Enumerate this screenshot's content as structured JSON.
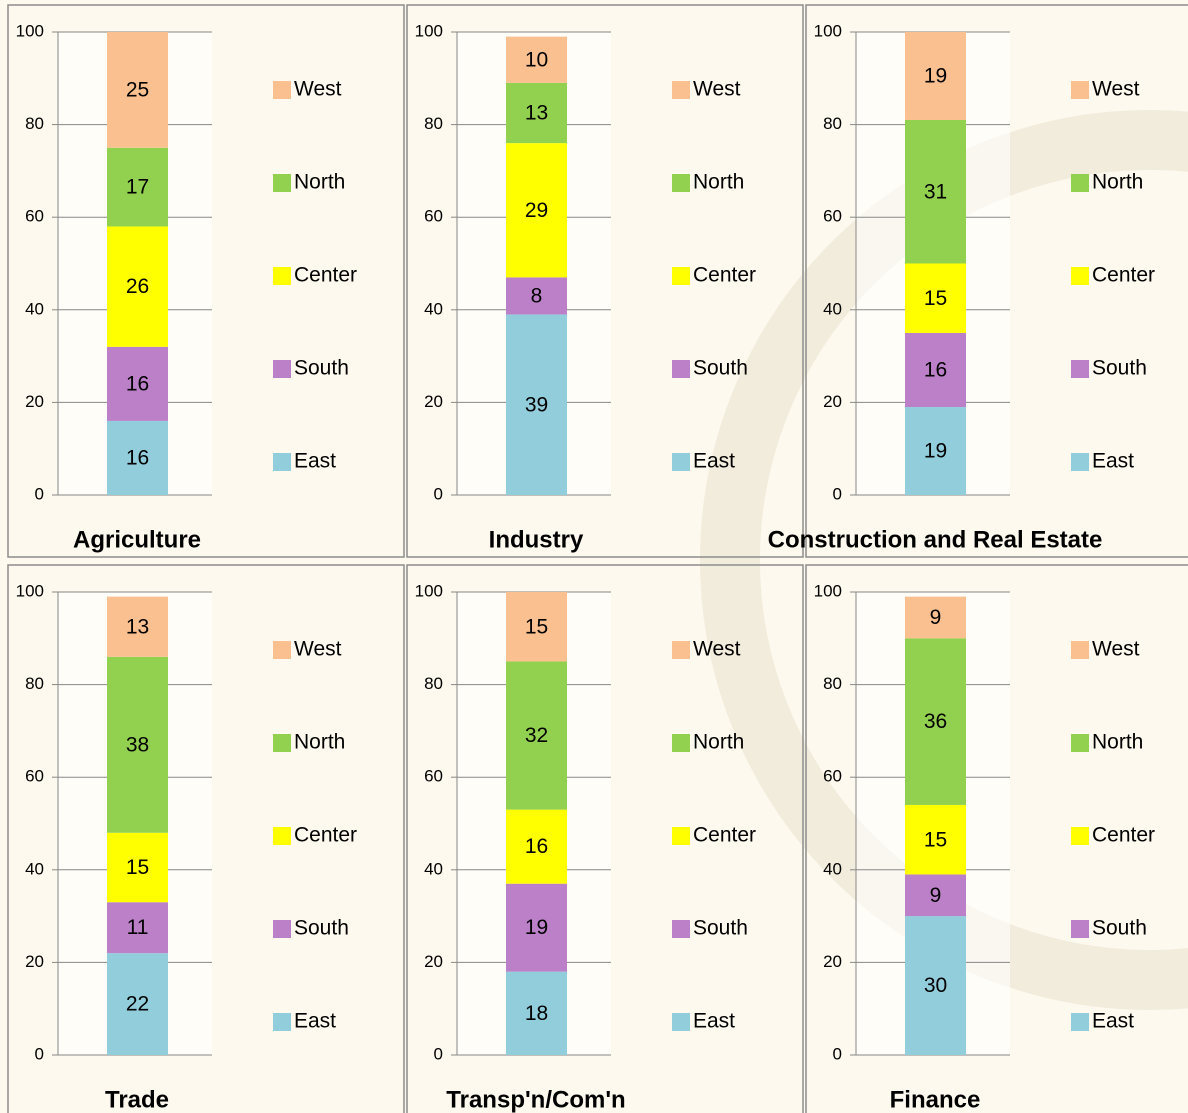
{
  "chart_data": [
    {
      "type": "bar",
      "stacked": true,
      "title": "Agriculture",
      "categories": [
        null
      ],
      "ylim": [
        0,
        100
      ],
      "yticks": [
        0,
        20,
        40,
        60,
        80,
        100
      ],
      "grid": true,
      "series": [
        {
          "name": "East",
          "color": "#92cddc",
          "values": [
            16
          ]
        },
        {
          "name": "South",
          "color": "#bb80c8",
          "values": [
            16
          ]
        },
        {
          "name": "Center",
          "color": "#ffff00",
          "values": [
            26
          ]
        },
        {
          "name": "North",
          "color": "#92d050",
          "values": [
            17
          ]
        },
        {
          "name": "West",
          "color": "#fac090",
          "values": [
            25
          ]
        }
      ]
    },
    {
      "type": "bar",
      "stacked": true,
      "title": "Industry",
      "categories": [
        null
      ],
      "ylim": [
        0,
        100
      ],
      "yticks": [
        0,
        20,
        40,
        60,
        80,
        100
      ],
      "grid": true,
      "series": [
        {
          "name": "East",
          "color": "#92cddc",
          "values": [
            39
          ]
        },
        {
          "name": "South",
          "color": "#bb80c8",
          "values": [
            8
          ]
        },
        {
          "name": "Center",
          "color": "#ffff00",
          "values": [
            29
          ]
        },
        {
          "name": "North",
          "color": "#92d050",
          "values": [
            13
          ]
        },
        {
          "name": "West",
          "color": "#fac090",
          "values": [
            10
          ]
        }
      ]
    },
    {
      "type": "bar",
      "stacked": true,
      "title": "Construction and Real Estate",
      "categories": [
        null
      ],
      "ylim": [
        0,
        100
      ],
      "yticks": [
        0,
        20,
        40,
        60,
        80,
        100
      ],
      "grid": true,
      "series": [
        {
          "name": "East",
          "color": "#92cddc",
          "values": [
            19
          ]
        },
        {
          "name": "South",
          "color": "#bb80c8",
          "values": [
            16
          ]
        },
        {
          "name": "Center",
          "color": "#ffff00",
          "values": [
            15
          ]
        },
        {
          "name": "North",
          "color": "#92d050",
          "values": [
            31
          ]
        },
        {
          "name": "West",
          "color": "#fac090",
          "values": [
            19
          ]
        }
      ]
    },
    {
      "type": "bar",
      "stacked": true,
      "title": "Trade",
      "categories": [
        null
      ],
      "ylim": [
        0,
        100
      ],
      "yticks": [
        0,
        20,
        40,
        60,
        80,
        100
      ],
      "grid": true,
      "series": [
        {
          "name": "East",
          "color": "#92cddc",
          "values": [
            22
          ]
        },
        {
          "name": "South",
          "color": "#bb80c8",
          "values": [
            11
          ]
        },
        {
          "name": "Center",
          "color": "#ffff00",
          "values": [
            15
          ]
        },
        {
          "name": "North",
          "color": "#92d050",
          "values": [
            38
          ]
        },
        {
          "name": "West",
          "color": "#fac090",
          "values": [
            13
          ]
        }
      ]
    },
    {
      "type": "bar",
      "stacked": true,
      "title": "Transp'n/Com'n",
      "categories": [
        null
      ],
      "ylim": [
        0,
        100
      ],
      "yticks": [
        0,
        20,
        40,
        60,
        80,
        100
      ],
      "grid": true,
      "series": [
        {
          "name": "East",
          "color": "#92cddc",
          "values": [
            18
          ]
        },
        {
          "name": "South",
          "color": "#bb80c8",
          "values": [
            19
          ]
        },
        {
          "name": "Center",
          "color": "#ffff00",
          "values": [
            16
          ]
        },
        {
          "name": "North",
          "color": "#92d050",
          "values": [
            32
          ]
        },
        {
          "name": "West",
          "color": "#fac090",
          "values": [
            15
          ]
        }
      ]
    },
    {
      "type": "bar",
      "stacked": true,
      "title": "Finance",
      "categories": [
        null
      ],
      "ylim": [
        0,
        100
      ],
      "yticks": [
        0,
        20,
        40,
        60,
        80,
        100
      ],
      "grid": true,
      "series": [
        {
          "name": "East",
          "color": "#92cddc",
          "values": [
            30
          ]
        },
        {
          "name": "South",
          "color": "#bb80c8",
          "values": [
            9
          ]
        },
        {
          "name": "Center",
          "color": "#ffff00",
          "values": [
            15
          ]
        },
        {
          "name": "North",
          "color": "#92d050",
          "values": [
            36
          ]
        },
        {
          "name": "West",
          "color": "#fac090",
          "values": [
            9
          ]
        }
      ]
    }
  ]
}
